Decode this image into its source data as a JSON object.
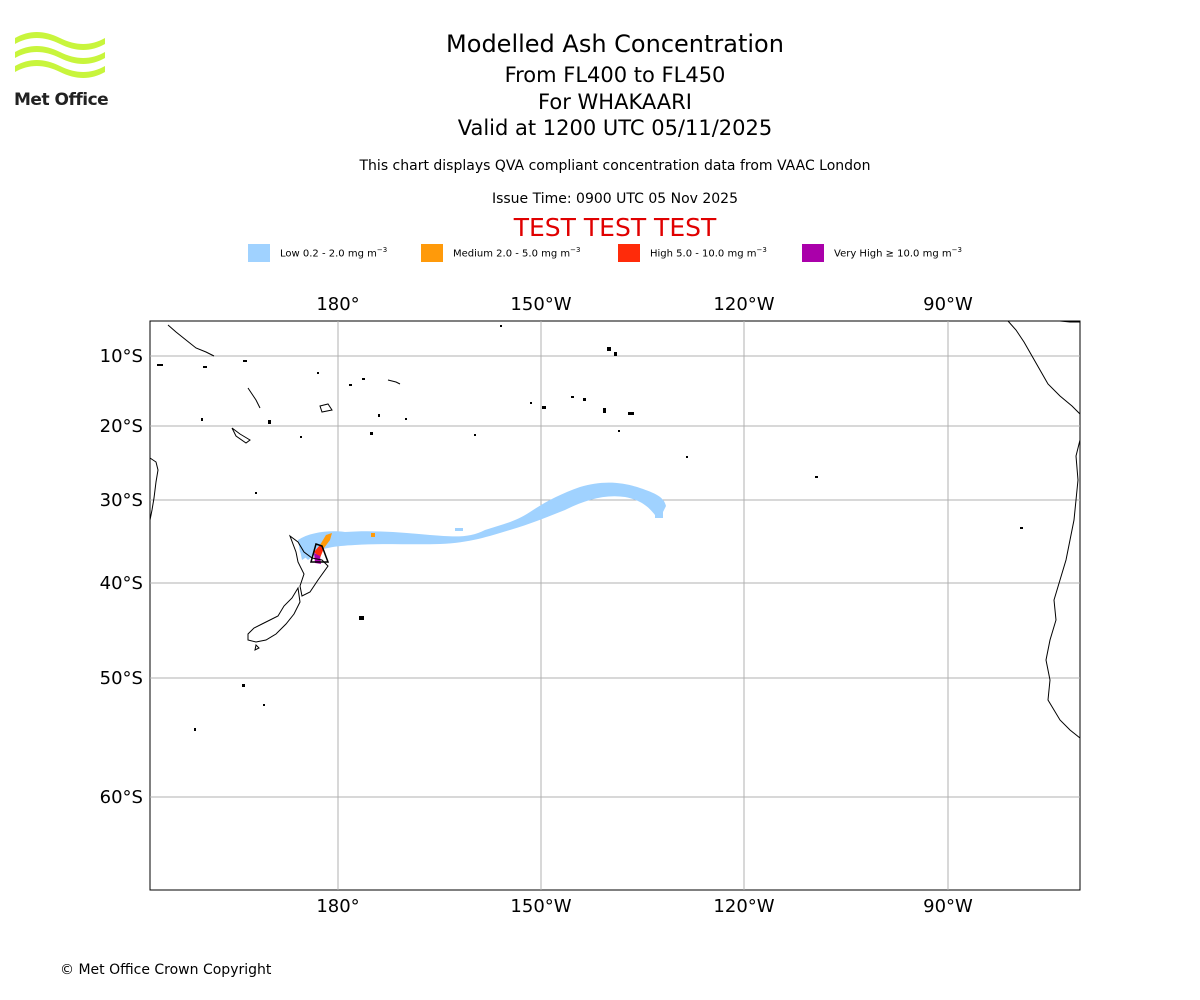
{
  "logo": {
    "text": "Met Office",
    "color": "#c8f53c"
  },
  "header": {
    "title": "Modelled Ash Concentration",
    "level": "From FL400 to FL450",
    "volcano": "For WHAKAARI",
    "valid": "Valid at 1200 UTC 05/11/2025",
    "description": "This chart displays QVA compliant concentration data from VAAC London",
    "issue": "Issue Time: 0900 UTC 05 Nov 2025",
    "test_banner": "TEST TEST TEST"
  },
  "legend": [
    {
      "label": "Low 0.2 - 2.0 mg m",
      "unit_exp": "−3",
      "color": "#a0d2ff"
    },
    {
      "label": "Medium 2.0 - 5.0 mg m",
      "unit_exp": "−3",
      "color": "#ff9a0a"
    },
    {
      "label": "High 5.0 - 10.0 mg m",
      "unit_exp": "−3",
      "color": "#ff2b0a"
    },
    {
      "label": "Very High ≥ 10.0 mg m",
      "unit_exp": "−3",
      "color": "#aa00aa"
    }
  ],
  "map": {
    "lon_ticks": [
      "180°",
      "150°W",
      "120°W",
      "90°W"
    ],
    "lat_ticks": [
      "10°S",
      "20°S",
      "30°S",
      "40°S",
      "50°S",
      "60°S"
    ],
    "grid_color": "#b0b0b0"
  },
  "footer": {
    "copyright": "© Met Office Crown Copyright"
  }
}
